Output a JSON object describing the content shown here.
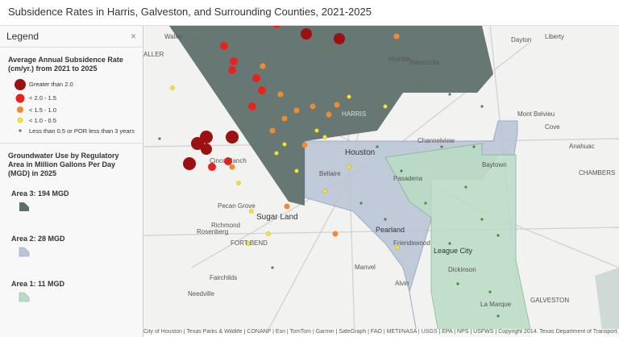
{
  "header": {
    "title": "Subsidence Rates in Harris, Galveston, and Surrounding Counties, 2021-2025"
  },
  "legend": {
    "title": "Legend",
    "close": "×",
    "sections": [
      {
        "title": "Average Annual Subsidence Rate (cm/yr.) from 2021 to 2025",
        "items": [
          "Greater than 2.0",
          "< 2.0 - 1.5",
          "< 1.5 - 1.0",
          "< 1.0 - 0.5",
          "Less than 0.5 or POR less than 3 years"
        ]
      },
      {
        "title": "Groundwater Use by Regulatory Area in Million Gallons Per Day (MGD) in 2025",
        "items": [
          "Area 3: 194 MGD",
          "Area 2: 28 MGD",
          "Area 1: 11 MGD"
        ]
      }
    ]
  },
  "map_labels": [
    "Waller",
    "ALLER",
    "Humble",
    "Atascocita",
    "Dayton",
    "Liberty",
    "Mont Belvieu",
    "Cove",
    "Anahuac",
    "CHAMBERS",
    "HARRIS",
    "Channelview",
    "Houston",
    "Baytown",
    "Bellaire",
    "Pasadena",
    "Cinco Ranch",
    "Pecan Grove",
    "Sugar Land",
    "Richmond",
    "Rosenberg",
    "FORT BEND",
    "Pearland",
    "Friendswood",
    "League City",
    "Dickinson",
    "Manvel",
    "Fairchilds",
    "Alvin",
    "Needville",
    "GALVESTON",
    "La Marque"
  ],
  "attribution": "City of Houston | Texas Parks & Wildlife | CONANP | Esri | TomTom | Garmin | SafeGraph | FAO | METI/NASA | USGS | EPA | NPS | USFWS | Copyright 2014. Texas Department of Transport..."
}
